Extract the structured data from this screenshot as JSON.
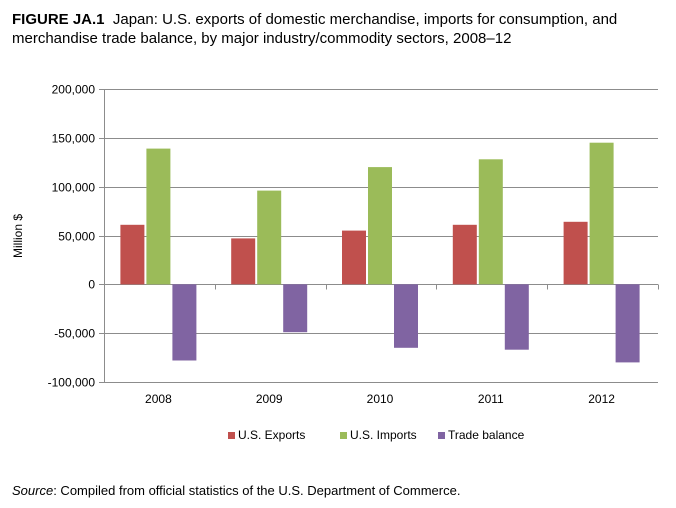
{
  "figure": {
    "label": "FIGURE JA.1",
    "caption": "Japan: U.S. exports of domestic merchandise, imports for consumption, and merchandise trade balance, by major industry/commodity sectors, 2008–12"
  },
  "source": {
    "label": "Source",
    "text": ": Compiled from official statistics of the U.S. Department of Commerce."
  },
  "colors": {
    "exports": "#c0504d",
    "imports": "#9bbb59",
    "balance": "#8064a2",
    "grid": "#8c8c8c"
  },
  "chart_data": {
    "type": "bar",
    "categories": [
      "2008",
      "2009",
      "2010",
      "2011",
      "2012"
    ],
    "series": [
      {
        "name": "U.S. Exports",
        "values": [
          61000,
          47000,
          55000,
          61000,
          64000
        ]
      },
      {
        "name": "U.S. Imports",
        "values": [
          139000,
          96000,
          120000,
          128000,
          145000
        ]
      },
      {
        "name": "Trade balance",
        "values": [
          -78000,
          -49000,
          -65000,
          -67000,
          -80000
        ]
      }
    ],
    "ylabel": "Million $",
    "ylim": [
      -100000,
      200000
    ],
    "yticks": [
      200000,
      150000,
      100000,
      50000,
      0,
      -50000,
      -100000
    ],
    "ytick_labels": [
      "200,000",
      "150,000",
      "100,000",
      "50,000",
      "0",
      "-50,000",
      "-100,000"
    ],
    "grid": true,
    "legend_position": "bottom"
  }
}
